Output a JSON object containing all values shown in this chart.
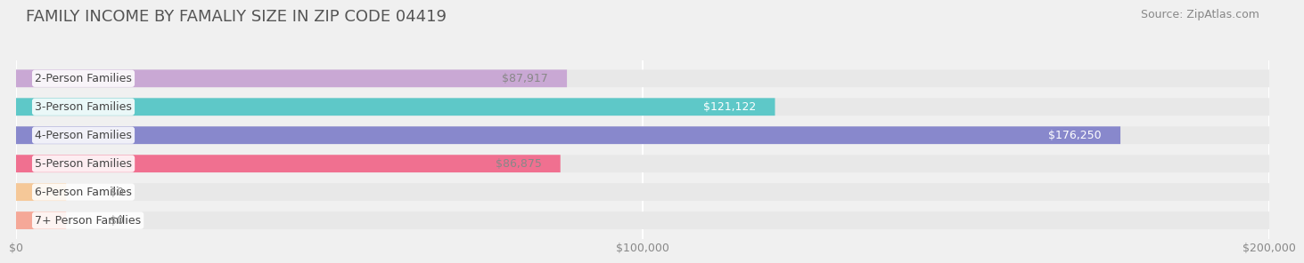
{
  "title": "FAMILY INCOME BY FAMALIY SIZE IN ZIP CODE 04419",
  "source": "Source: ZipAtlas.com",
  "categories": [
    "2-Person Families",
    "3-Person Families",
    "4-Person Families",
    "5-Person Families",
    "6-Person Families",
    "7+ Person Families"
  ],
  "values": [
    87917,
    121122,
    176250,
    86875,
    0,
    0
  ],
  "bar_colors": [
    "#c9a8d4",
    "#5ec8c8",
    "#8888cc",
    "#f07090",
    "#f5c898",
    "#f5a898"
  ],
  "label_colors": [
    "#888888",
    "#ffffff",
    "#ffffff",
    "#888888",
    "#888888",
    "#888888"
  ],
  "value_labels": [
    "$87,917",
    "$121,122",
    "$176,250",
    "$86,875",
    "$0",
    "$0"
  ],
  "xlim": [
    0,
    200000
  ],
  "xticks": [
    0,
    100000,
    200000
  ],
  "xticklabels": [
    "$0",
    "$100,000",
    "$200,000"
  ],
  "background_color": "#f0f0f0",
  "bar_background": "#e8e8e8",
  "title_fontsize": 13,
  "source_fontsize": 9,
  "label_fontsize": 9,
  "value_fontsize": 9
}
